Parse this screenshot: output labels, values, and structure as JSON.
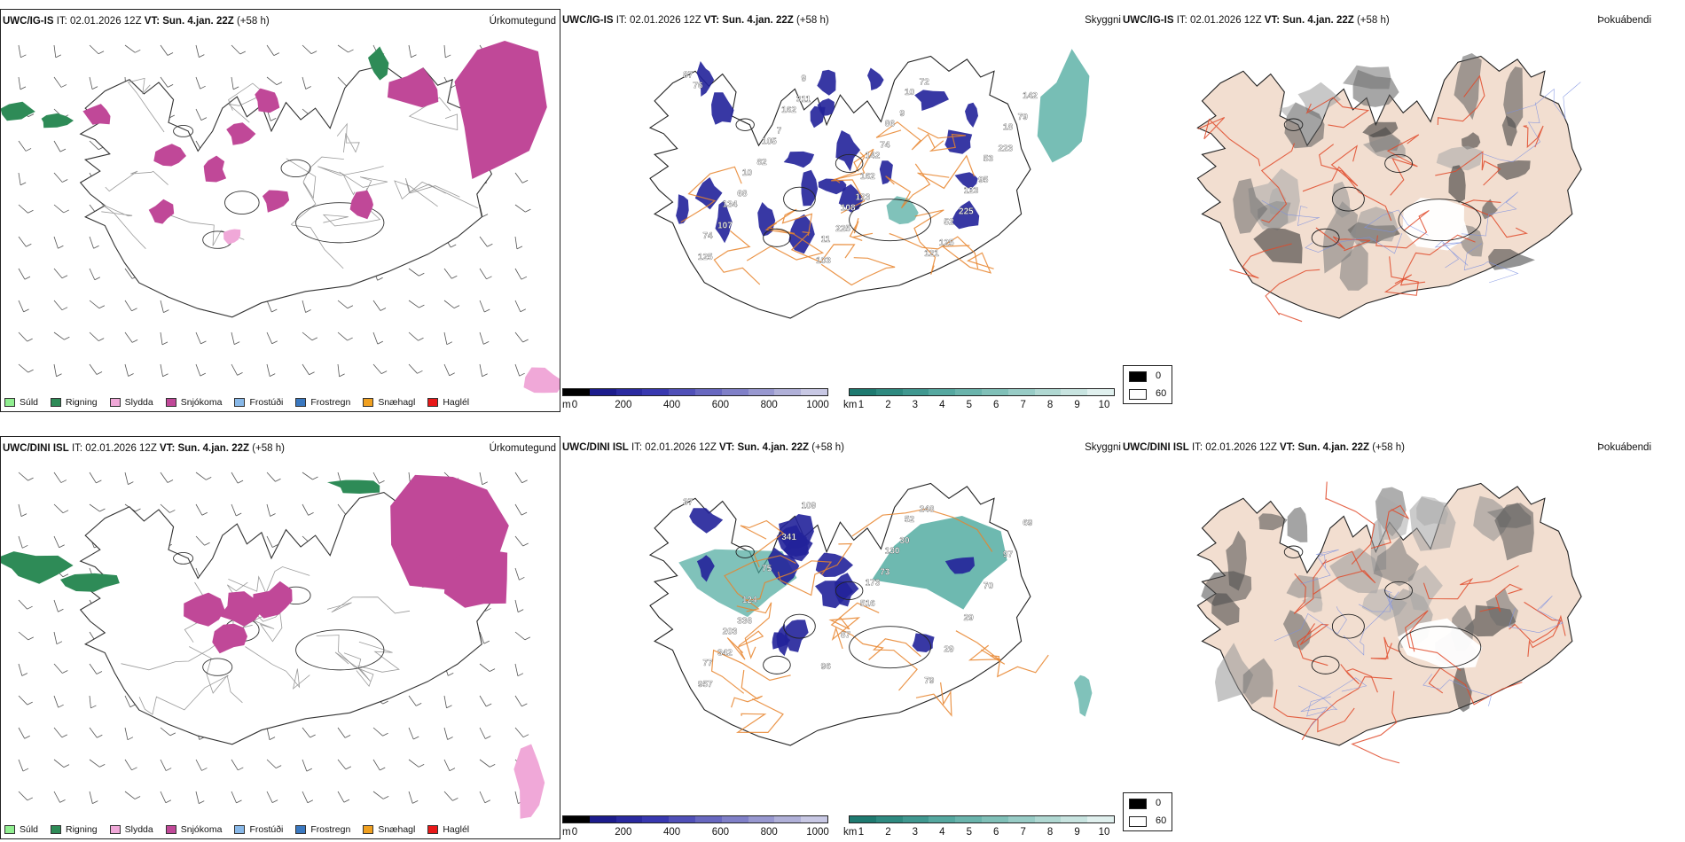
{
  "rows": [
    {
      "id": "top",
      "precip": {
        "title_prefix": "UWC/IG-IS",
        "title_mid": " IT: 02.01.2026 12Z ",
        "title_vt": "VT: Sun. 4.jan. 22Z",
        "title_suffix": " (+58 h)",
        "variable": "Úrkomutegund"
      },
      "vis": {
        "title_prefix": "UWC/IG-IS",
        "title_mid": " IT: 02.01.2026 12Z ",
        "title_vt": "VT: Sun. 4.jan. 22Z",
        "title_suffix": " (+58 h)",
        "variable": "Skyggni",
        "labels": [
          "87",
          "142",
          "74",
          "86",
          "134",
          "10",
          "10",
          "121",
          "105",
          "52",
          "162",
          "123",
          "9",
          "53",
          "11",
          "18",
          "108",
          "142",
          "162",
          "125",
          "74",
          "107",
          "9",
          "68",
          "72",
          "82",
          "125",
          "7",
          "225",
          "311",
          "95",
          "103",
          "223",
          "225",
          "79",
          "123",
          "76"
        ]
      },
      "fog": {
        "title_prefix": "UWC/IG-IS",
        "title_mid": " IT: 02.01.2026 12Z ",
        "title_vt": "VT: Sun. 4.jan. 22Z",
        "title_suffix": " (+58 h)",
        "variable": "Þokuábendi"
      }
    },
    {
      "id": "bottom",
      "precip": {
        "title_prefix": "UWC/DINI ISL",
        "title_mid": " IT: 02.01.2026 12Z ",
        "title_vt": "VT: Sun. 4.jan. 22Z",
        "title_suffix": " (+58 h)",
        "variable": "Úrkomutegund"
      },
      "vis": {
        "title_prefix": "UWC/DINI ISL",
        "title_mid": " IT: 02.01.2026 12Z ",
        "title_vt": "VT: Sun. 4.jan. 22Z",
        "title_suffix": " (+58 h)",
        "variable": "Skyggni",
        "labels": [
          "37",
          "173",
          "77",
          "130",
          "203",
          "52",
          "124",
          "79",
          "75",
          "29",
          "341",
          "29",
          "109",
          "70",
          "96",
          "97",
          "87",
          "69",
          "516",
          "957",
          "73",
          "342",
          "30",
          "336",
          "248"
        ]
      },
      "fog": {
        "title_prefix": "UWC/DINI ISL",
        "title_mid": " IT: 02.01.2026 12Z ",
        "title_vt": "VT: Sun. 4.jan. 22Z",
        "title_suffix": " (+58 h)",
        "variable": "Þokuábendi"
      }
    }
  ],
  "precip_legend": [
    {
      "label": "Súld",
      "color": "#90ee90"
    },
    {
      "label": "Rigning",
      "color": "#2e8b57"
    },
    {
      "label": "Slydda",
      "color": "#f0a8d8"
    },
    {
      "label": "Snjókoma",
      "color": "#c04898"
    },
    {
      "label": "Frostúði",
      "color": "#88b8e8"
    },
    {
      "label": "Frostregn",
      "color": "#3a78c0"
    },
    {
      "label": "Snæhagl",
      "color": "#f0a020"
    },
    {
      "label": "Haglél",
      "color": "#e81818"
    }
  ],
  "height_bar": {
    "unit": "m",
    "ticks": [
      "0",
      "200",
      "400",
      "600",
      "800",
      "1000"
    ],
    "colors": [
      "#000000",
      "#1c1c8c",
      "#2a2aa0",
      "#3838b0",
      "#5050b8",
      "#6868c0",
      "#8080c8",
      "#9898d0",
      "#b0b0d8",
      "#c8c8e4"
    ]
  },
  "vis_bar": {
    "unit": "km",
    "ticks": [
      "1",
      "2",
      "3",
      "4",
      "5",
      "6",
      "7",
      "8",
      "9",
      "10"
    ],
    "colors": [
      "#1e7a70",
      "#2e8a80",
      "#409890",
      "#55a8a0",
      "#6ab4ac",
      "#80c0b8",
      "#98ccc6",
      "#b0d8d2",
      "#c8e4e0",
      "#e0f0ee"
    ]
  },
  "fog_key": {
    "values": [
      "0",
      "60"
    ],
    "colors": [
      "#000000",
      "#ffffff"
    ]
  },
  "colors": {
    "snow": "#c04898",
    "rain": "#2e8b57",
    "sleet": "#f0a8d8",
    "vis_blue": "#22229a",
    "vis_teal": "#4aa89c",
    "road": "#e8842c",
    "land_fog": "#f2ded0",
    "road_red": "#e04a2a"
  }
}
